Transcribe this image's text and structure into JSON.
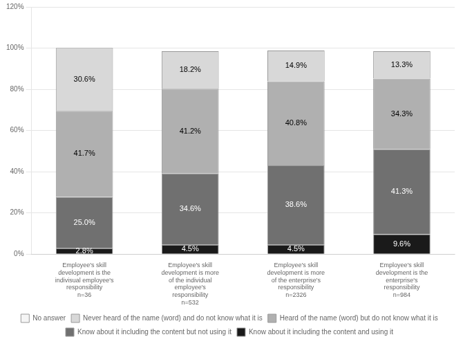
{
  "chart_data": {
    "type": "bar",
    "stacked": true,
    "categories": [
      "Employee's skill\ndevelopment is the\nindivisual employee's\nresponsibility\nn=36",
      "Employee's skill\ndevelopment is more\nof the individual\nemployee's\nresponsibility\nn=532",
      "Employee's skill\ndevelopment is more\nof the enterprise's\nresponsibility\nn=2326",
      "Employee's skill\ndevelopment is the\nenterprise's\nresponsibility\nn=984"
    ],
    "series": [
      {
        "name": "Know about it including the content and using it",
        "color": "#1a1a1a",
        "values": [
          2.8,
          4.5,
          4.5,
          9.6
        ],
        "value_labels": [
          "2.8%",
          "4.5%",
          "4.5%",
          "9.6%"
        ]
      },
      {
        "name": "Know about it including the content but not using it",
        "color": "#707070",
        "values": [
          25.0,
          34.6,
          38.6,
          41.3
        ],
        "value_labels": [
          "25.0%",
          "34.6%",
          "38.6%",
          "41.3%"
        ]
      },
      {
        "name": "Heard of the name (word) but do not know what it is",
        "color": "#b0b0b0",
        "values": [
          41.7,
          41.2,
          40.8,
          34.3
        ],
        "value_labels": [
          "41.7%",
          "41.2%",
          "40.8%",
          "34.3%"
        ]
      },
      {
        "name": "Never heard of the name (word) and do not know what it is",
        "color": "#d8d8d8",
        "values": [
          30.6,
          18.2,
          14.9,
          13.3
        ],
        "value_labels": [
          "30.6%",
          "18.2%",
          "14.9%",
          "13.3%"
        ]
      },
      {
        "name": "No answer",
        "color": "#f5f5f5",
        "values": [
          0.0,
          0.0,
          0.0,
          0.0
        ]
      }
    ],
    "ylim": [
      0,
      120
    ],
    "yticks": [
      {
        "value": 0,
        "label": "0%"
      },
      {
        "value": 20,
        "label": "20%"
      },
      {
        "value": 40,
        "label": "40%"
      },
      {
        "value": 60,
        "label": "60%"
      },
      {
        "value": 80,
        "label": "80%"
      },
      {
        "value": 100,
        "label": "100%"
      },
      {
        "value": 120,
        "label": "120%"
      }
    ],
    "grid": true,
    "legend": "bottom",
    "data_labels": true
  }
}
